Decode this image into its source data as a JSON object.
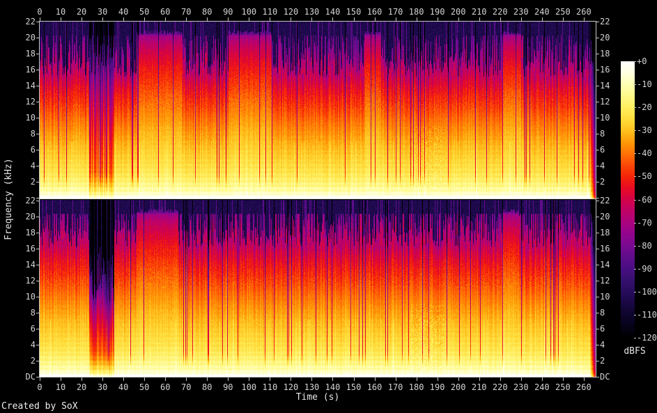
{
  "credit": "Created by SoX",
  "chart_data": {
    "type": "heatmap",
    "subtype": "audio-spectrogram-stereo",
    "title": "",
    "xlabel": "Time (s)",
    "ylabel": "Frequency (kHz)",
    "x_range": [
      0,
      265.7
    ],
    "x_ticks": [
      0,
      10,
      20,
      30,
      40,
      50,
      60,
      70,
      80,
      90,
      100,
      110,
      120,
      130,
      140,
      150,
      160,
      170,
      180,
      190,
      200,
      210,
      220,
      230,
      240,
      250,
      260
    ],
    "freq_range_khz": [
      0,
      22
    ],
    "freq_tick_labels": [
      "22",
      "20",
      "18",
      "16",
      "14",
      "12",
      "10",
      "8",
      "6",
      "4",
      "2"
    ],
    "dc_label": "DC",
    "grid": false,
    "colorbar": {
      "unit": "dBFS",
      "tick_labels": [
        "+0",
        "-10",
        "-20",
        "-30",
        "-40",
        "-50",
        "-60",
        "-70",
        "-80",
        "-90",
        "-100",
        "-110",
        "-120"
      ],
      "range_db": [
        0,
        -120
      ],
      "palette_stops": [
        [
          0,
          "#ffffff"
        ],
        [
          -5,
          "#ffffdf"
        ],
        [
          -10,
          "#ffffb3"
        ],
        [
          -15,
          "#fff88a"
        ],
        [
          -20,
          "#ffee5f"
        ],
        [
          -25,
          "#ffdd3c"
        ],
        [
          -30,
          "#ffc11e"
        ],
        [
          -35,
          "#ff9a08"
        ],
        [
          -40,
          "#ff7206"
        ],
        [
          -45,
          "#fb4807"
        ],
        [
          -50,
          "#f52408"
        ],
        [
          -55,
          "#e80b24"
        ],
        [
          -60,
          "#d30347"
        ],
        [
          -65,
          "#bf0266"
        ],
        [
          -70,
          "#aa037f"
        ],
        [
          -75,
          "#92058e"
        ],
        [
          -80,
          "#790a91"
        ],
        [
          -85,
          "#5f0d8b"
        ],
        [
          -90,
          "#480e82"
        ],
        [
          -95,
          "#36106f"
        ],
        [
          -100,
          "#260c5b"
        ],
        [
          -105,
          "#190844"
        ],
        [
          -110,
          "#0e052d"
        ],
        [
          -115,
          "#060218"
        ],
        [
          -120,
          "#000000"
        ]
      ]
    },
    "render": {
      "freq_profile_db": [
        [
          0,
          -4
        ],
        [
          0.3,
          -6
        ],
        [
          1,
          -11
        ],
        [
          2,
          -16
        ],
        [
          3,
          -20
        ],
        [
          4,
          -23
        ],
        [
          6,
          -27
        ],
        [
          8,
          -31
        ],
        [
          10,
          -36
        ],
        [
          12,
          -41
        ],
        [
          14,
          -47
        ],
        [
          16,
          -53
        ],
        [
          17,
          -57
        ],
        [
          18,
          -61
        ],
        [
          19,
          -66
        ],
        [
          19.8,
          -72
        ],
        [
          20.4,
          -86
        ],
        [
          21,
          -100
        ],
        [
          22,
          -110
        ]
      ],
      "channels": [
        {
          "name": "channel-1",
          "seed": 11,
          "base_top_khz": 16.3,
          "spike_prob": 0.1,
          "solid_intervals": [
            [
              46,
              68
            ],
            [
              90,
              111
            ],
            [
              155,
              163
            ],
            [
              221,
              230
            ]
          ],
          "quiet_intervals": [
            {
              "t": [
                23.5,
                35.5
              ],
              "amp": 24,
              "bar_top_khz": 19.5
            }
          ],
          "texture_patches": [
            {
              "t": [
                177,
                193
              ],
              "f": [
                0.8,
                9
              ],
              "amp": 9
            }
          ],
          "fade_start": 262.6
        },
        {
          "name": "channel-2",
          "seed": 22,
          "base_top_khz": 17.3,
          "spike_prob": 0.13,
          "solid_intervals": [
            [
              46,
              66
            ],
            [
              221,
              229
            ]
          ],
          "quiet_intervals": [
            {
              "t": [
                23.5,
                35.5
              ],
              "amp": 24,
              "bar_top_khz": 13
            }
          ],
          "texture_patches": [
            {
              "t": [
                177,
                193
              ],
              "f": [
                0.8,
                9
              ],
              "amp": 10
            }
          ],
          "fade_start": 262.6
        }
      ]
    }
  }
}
